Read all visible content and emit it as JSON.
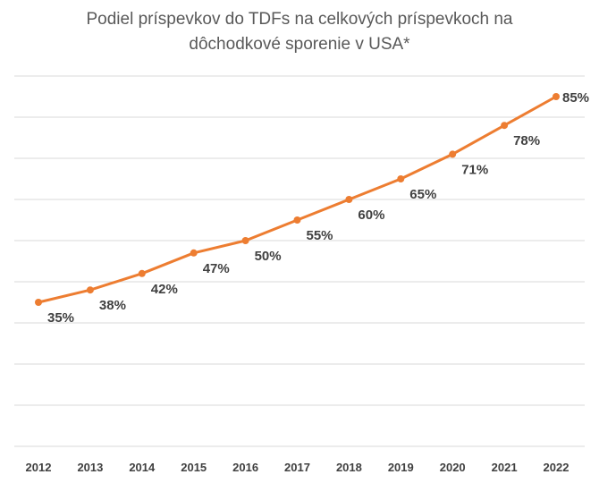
{
  "chart_data": {
    "type": "line",
    "title_lines": [
      "Podiel príspevkov do TDFs na celkových príspevkoch na",
      "dôchodkové sporenie v USA*"
    ],
    "categories": [
      "2012",
      "2013",
      "2014",
      "2015",
      "2016",
      "2017",
      "2018",
      "2019",
      "2020",
      "2021",
      "2022"
    ],
    "series": [
      {
        "values": [
          35,
          38,
          42,
          47,
          50,
          55,
          60,
          65,
          71,
          78,
          85
        ],
        "data_labels": [
          "35%",
          "38%",
          "42%",
          "47%",
          "50%",
          "55%",
          "60%",
          "65%",
          "71%",
          "78%",
          "85%"
        ],
        "color": "#ED7D31"
      }
    ],
    "ylim": [
      0,
      90
    ],
    "grid": true,
    "gridline_color": "#D9D9D9",
    "xlabel": "",
    "ylabel": "",
    "legend": "none"
  }
}
